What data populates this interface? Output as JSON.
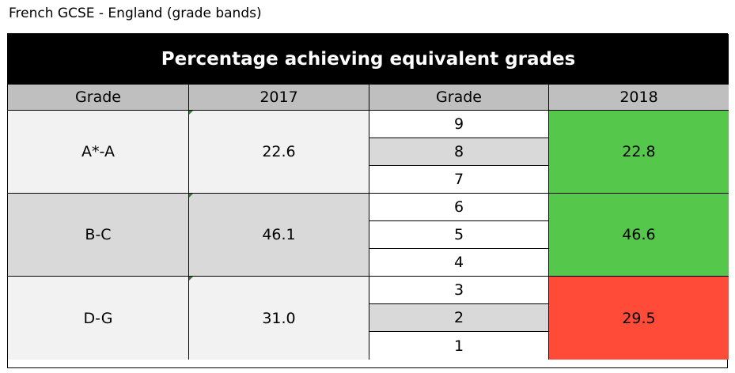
{
  "caption": "French GCSE - England (grade bands)",
  "table": {
    "title": "Percentage achieving equivalent grades",
    "headers": [
      "Grade",
      "2017",
      "Grade",
      "2018"
    ],
    "colors": {
      "higher": "#55c84b",
      "lower": "#ff4b38"
    },
    "bands": [
      {
        "grade_2017": "A*-A",
        "value_2017": "22.6",
        "grades_2018": [
          "9",
          "8",
          "7"
        ],
        "value_2018": "22.8",
        "status": "higher"
      },
      {
        "grade_2017": "B-C",
        "value_2017": "46.1",
        "grades_2018": [
          "6",
          "5",
          "4"
        ],
        "value_2018": "46.6",
        "status": "higher"
      },
      {
        "grade_2017": "D-G",
        "value_2017": "31.0",
        "grades_2018": [
          "3",
          "2",
          "1"
        ],
        "value_2018": "29.5",
        "status": "lower"
      }
    ]
  }
}
